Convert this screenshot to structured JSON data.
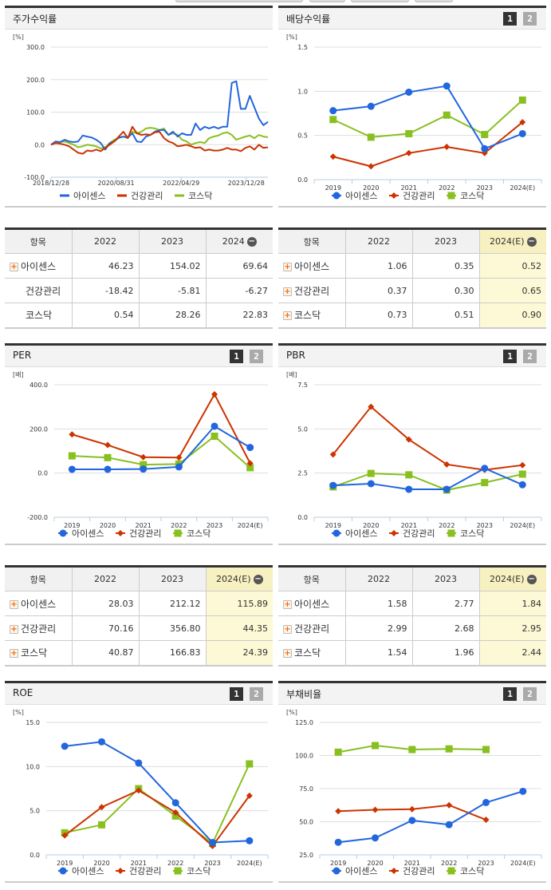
{
  "colors": {
    "aisense": "#2266dd",
    "health": "#cc3300",
    "kosdaq": "#88c020",
    "grid": "#dddddd",
    "estimate_bg": "#fdf8d5"
  },
  "legend": [
    "아이센스",
    "건강관리",
    "코스닥"
  ],
  "pager": {
    "btn1": "1",
    "btn2": "2"
  },
  "panels": {
    "stock_return": {
      "title": "주가수익률",
      "unit": "[%]",
      "yticks": [
        "300.0",
        "200.0",
        "100.0",
        "0.0",
        "-100.0"
      ],
      "xticks": [
        "2018/12/28",
        "2020/08/31",
        "2022/04/29",
        "2023/12/28"
      ]
    },
    "dividend": {
      "title": "배당수익률",
      "unit": "[%]",
      "yticks": [
        "1.5",
        "1.0",
        "0.5",
        "0.0"
      ],
      "xticks": [
        "2019",
        "2020",
        "2021",
        "2022",
        "2023",
        "2024(E)"
      ]
    },
    "per": {
      "title": "PER",
      "unit": "[배]",
      "yticks": [
        "400.0",
        "200.0",
        "0.0",
        "-200.0"
      ],
      "xticks": [
        "2019",
        "2020",
        "2021",
        "2022",
        "2023",
        "2024(E)"
      ]
    },
    "pbr": {
      "title": "PBR",
      "unit": "[배]",
      "yticks": [
        "7.5",
        "5.0",
        "2.5",
        "0.0"
      ],
      "xticks": [
        "2019",
        "2020",
        "2021",
        "2022",
        "2023",
        "2024(E)"
      ]
    },
    "roe": {
      "title": "ROE",
      "unit": "[%]",
      "yticks": [
        "15.0",
        "10.0",
        "5.0",
        "0.0"
      ],
      "xticks": [
        "2019",
        "2020",
        "2021",
        "2022",
        "2023",
        "2024(E)"
      ]
    },
    "debt": {
      "title": "부채비율",
      "unit": "[%]",
      "yticks": [
        "125.0",
        "100.0",
        "75.0",
        "50.0",
        "25.0"
      ],
      "xticks": [
        "2019",
        "2020",
        "2021",
        "2022",
        "2023",
        "2024(E)"
      ]
    }
  },
  "tables": {
    "stock_return": {
      "headers": [
        "항목",
        "2022",
        "2023",
        "2024"
      ],
      "rows": [
        {
          "name": "아이센스",
          "values": [
            "46.23",
            "154.02",
            "69.64"
          ]
        },
        {
          "name": "건강관리",
          "values": [
            "-18.42",
            "-5.81",
            "-6.27"
          ]
        },
        {
          "name": "코스닥",
          "values": [
            "0.54",
            "28.26",
            "22.83"
          ]
        }
      ]
    },
    "dividend": {
      "headers": [
        "항목",
        "2022",
        "2023",
        "2024(E)"
      ],
      "rows": [
        {
          "name": "아이센스",
          "values": [
            "1.06",
            "0.35",
            "0.52"
          ]
        },
        {
          "name": "건강관리",
          "values": [
            "0.37",
            "0.30",
            "0.65"
          ]
        },
        {
          "name": "코스닥",
          "values": [
            "0.73",
            "0.51",
            "0.90"
          ]
        }
      ]
    },
    "per": {
      "headers": [
        "항목",
        "2022",
        "2023",
        "2024(E)"
      ],
      "rows": [
        {
          "name": "아이센스",
          "values": [
            "28.03",
            "212.12",
            "115.89"
          ]
        },
        {
          "name": "건강관리",
          "values": [
            "70.16",
            "356.80",
            "44.35"
          ]
        },
        {
          "name": "코스닥",
          "values": [
            "40.87",
            "166.83",
            "24.39"
          ]
        }
      ]
    },
    "pbr": {
      "headers": [
        "항목",
        "2022",
        "2023",
        "2024(E)"
      ],
      "rows": [
        {
          "name": "아이센스",
          "values": [
            "1.58",
            "2.77",
            "1.84"
          ]
        },
        {
          "name": "건강관리",
          "values": [
            "2.99",
            "2.68",
            "2.95"
          ]
        },
        {
          "name": "코스닥",
          "values": [
            "1.54",
            "1.96",
            "2.44"
          ]
        }
      ]
    }
  },
  "chart_data": [
    {
      "type": "line",
      "title": "주가수익률",
      "ylabel": "[%]",
      "ylim": [
        -100,
        300
      ],
      "xticks": [
        "2018/12/28",
        "2020/08/31",
        "2022/04/29",
        "2023/12/28"
      ],
      "series": [
        {
          "name": "아이센스",
          "values": [
            0,
            10,
            8,
            15,
            10,
            8,
            10,
            28,
            25,
            22,
            15,
            5,
            -15,
            5,
            10,
            22,
            25,
            22,
            35,
            10,
            8,
            25,
            30,
            40,
            45,
            45,
            30,
            40,
            25,
            35,
            30,
            30,
            65,
            45,
            55,
            50,
            55,
            50,
            55,
            55,
            190,
            195,
            110,
            110,
            150,
            115,
            80,
            60,
            70
          ]
        },
        {
          "name": "건강관리",
          "values": [
            0,
            5,
            3,
            0,
            -5,
            -15,
            -25,
            -28,
            -18,
            -20,
            -15,
            -20,
            -10,
            0,
            10,
            25,
            40,
            20,
            55,
            35,
            30,
            32,
            30,
            38,
            40,
            20,
            10,
            5,
            -5,
            -3,
            0,
            -5,
            -10,
            -8,
            -18,
            -15,
            -18,
            -18,
            -15,
            -10,
            -15,
            -15,
            -20,
            -10,
            -5,
            -15,
            0,
            -10,
            -8
          ]
        },
        {
          "name": "코스닥",
          "values": [
            0,
            5,
            8,
            10,
            5,
            0,
            -8,
            -5,
            0,
            -2,
            -5,
            -12,
            -8,
            5,
            15,
            20,
            25,
            20,
            40,
            35,
            40,
            50,
            52,
            50,
            45,
            50,
            30,
            35,
            30,
            15,
            10,
            0,
            5,
            8,
            5,
            20,
            25,
            28,
            35,
            38,
            30,
            15,
            20,
            25,
            28,
            20,
            30,
            25,
            23
          ]
        }
      ]
    },
    {
      "type": "line",
      "title": "배당수익률",
      "ylabel": "[%]",
      "ylim": [
        0,
        1.5
      ],
      "categories": [
        "2019",
        "2020",
        "2021",
        "2022",
        "2023",
        "2024(E)"
      ],
      "series": [
        {
          "name": "아이센스",
          "values": [
            0.78,
            0.83,
            0.99,
            1.06,
            0.35,
            0.52
          ]
        },
        {
          "name": "건강관리",
          "values": [
            0.26,
            0.15,
            0.3,
            0.37,
            0.3,
            0.65
          ]
        },
        {
          "name": "코스닥",
          "values": [
            0.68,
            0.48,
            0.52,
            0.73,
            0.51,
            0.9
          ]
        }
      ]
    },
    {
      "type": "line",
      "title": "PER",
      "ylabel": "[배]",
      "ylim": [
        -200,
        400
      ],
      "categories": [
        "2019",
        "2020",
        "2021",
        "2022",
        "2023",
        "2024(E)"
      ],
      "series": [
        {
          "name": "아이센스",
          "values": [
            17,
            17,
            18,
            28.03,
            212.12,
            115.89
          ]
        },
        {
          "name": "건강관리",
          "values": [
            175,
            127,
            72,
            70.16,
            356.8,
            44.35
          ]
        },
        {
          "name": "코스닥",
          "values": [
            78,
            70,
            38,
            40.87,
            166.83,
            24.39
          ]
        }
      ]
    },
    {
      "type": "line",
      "title": "PBR",
      "ylabel": "[배]",
      "ylim": [
        0,
        7.5
      ],
      "categories": [
        "2019",
        "2020",
        "2021",
        "2022",
        "2023",
        "2024(E)"
      ],
      "series": [
        {
          "name": "아이센스",
          "values": [
            1.8,
            1.9,
            1.58,
            1.58,
            2.77,
            1.84
          ]
        },
        {
          "name": "건강관리",
          "values": [
            3.55,
            6.25,
            4.4,
            2.99,
            2.68,
            2.95
          ]
        },
        {
          "name": "코스닥",
          "values": [
            1.72,
            2.48,
            2.4,
            1.54,
            1.96,
            2.44
          ]
        }
      ]
    },
    {
      "type": "line",
      "title": "ROE",
      "ylabel": "[%]",
      "ylim": [
        0,
        15
      ],
      "categories": [
        "2019",
        "2020",
        "2021",
        "2022",
        "2023",
        "2024(E)"
      ],
      "series": [
        {
          "name": "아이센스",
          "values": [
            12.3,
            12.8,
            10.4,
            5.9,
            1.4,
            1.6
          ]
        },
        {
          "name": "건강관리",
          "values": [
            2.2,
            5.4,
            7.3,
            4.8,
            1.0,
            6.7
          ]
        },
        {
          "name": "코스닥",
          "values": [
            2.5,
            3.4,
            7.5,
            4.4,
            1.3,
            10.3
          ]
        }
      ]
    },
    {
      "type": "line",
      "title": "부채비율",
      "ylabel": "[%]",
      "ylim": [
        25,
        125
      ],
      "categories": [
        "2019",
        "2020",
        "2021",
        "2022",
        "2023",
        "2024(E)"
      ],
      "series": [
        {
          "name": "아이센스",
          "values": [
            34.5,
            37.8,
            51.0,
            47.8,
            64.5,
            73.0
          ]
        },
        {
          "name": "건강관리",
          "values": [
            58.0,
            59.0,
            59.5,
            62.5,
            51.5,
            null
          ]
        },
        {
          "name": "코스닥",
          "values": [
            102.5,
            107.5,
            104.5,
            105.0,
            104.5,
            null
          ]
        }
      ]
    }
  ]
}
